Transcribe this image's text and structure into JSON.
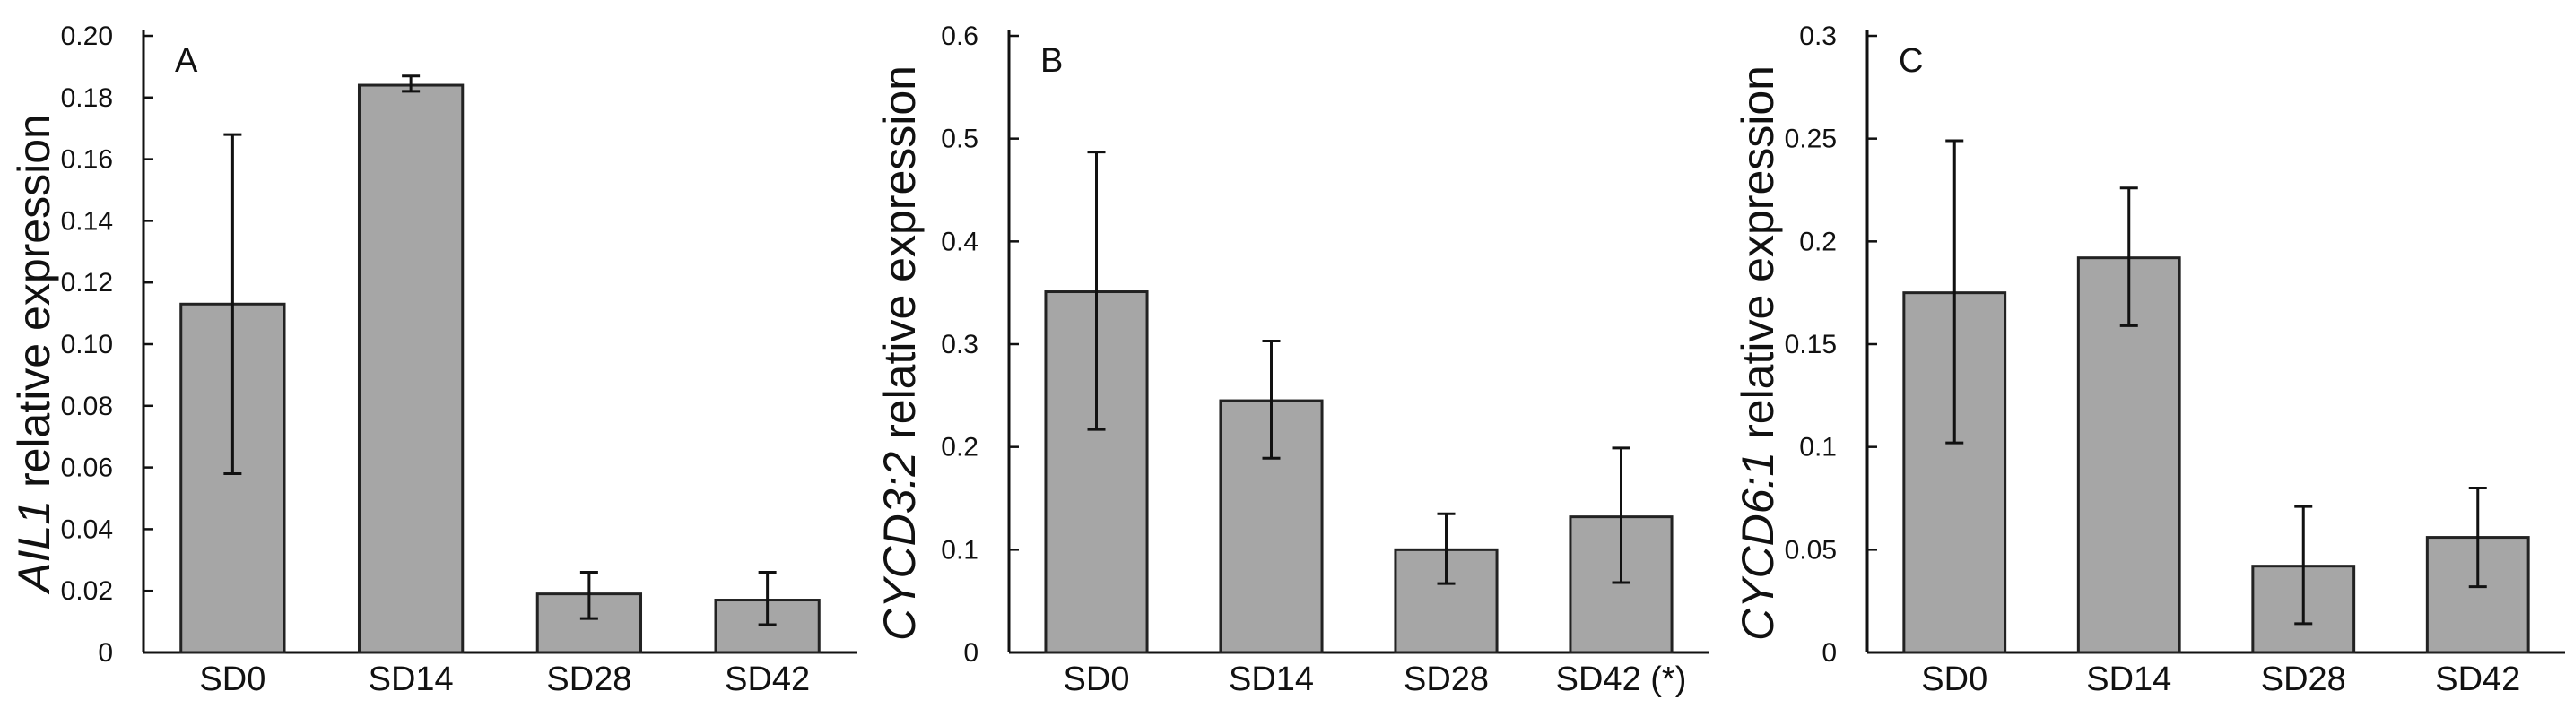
{
  "figure": {
    "bar_color": "#a6a6a6",
    "edge_color": "#222222"
  },
  "chart_data": [
    {
      "type": "bar",
      "panel_label": "A",
      "ylabel_gene": "AIL1",
      "ylabel_rest": " relative expression",
      "categories": [
        "SD0",
        "SD14",
        "SD28",
        "SD42"
      ],
      "values": [
        0.113,
        0.184,
        0.019,
        0.017
      ],
      "error_low": [
        0.058,
        0.182,
        0.011,
        0.009
      ],
      "error_high": [
        0.168,
        0.187,
        0.026,
        0.026
      ],
      "ylim": [
        0,
        0.2
      ],
      "yticks": [
        0,
        0.02,
        0.04,
        0.06,
        0.08,
        0.1,
        0.12,
        0.14,
        0.16,
        0.18,
        0.2
      ],
      "ytick_labels": [
        "0",
        "0.02",
        "0.04",
        "0.06",
        "0.08",
        "0.10",
        "0.12",
        "0.14",
        "0.16",
        "0.18",
        "0.20"
      ]
    },
    {
      "type": "bar",
      "panel_label": "B",
      "ylabel_gene": "CYCD3:2",
      "ylabel_rest": " relative expression",
      "categories": [
        "SD0",
        "SD14",
        "SD28",
        "SD42 (*)"
      ],
      "values": [
        0.351,
        0.245,
        0.1,
        0.132
      ],
      "error_low": [
        0.217,
        0.189,
        0.067,
        0.068
      ],
      "error_high": [
        0.487,
        0.303,
        0.135,
        0.199
      ],
      "ylim": [
        0,
        0.6
      ],
      "yticks": [
        0,
        0.1,
        0.2,
        0.3,
        0.4,
        0.5,
        0.6
      ],
      "ytick_labels": [
        "0",
        "0.1",
        "0.2",
        "0.3",
        "0.4",
        "0.5",
        "0.6"
      ]
    },
    {
      "type": "bar",
      "panel_label": "C",
      "ylabel_gene": "CYCD6:1",
      "ylabel_rest": " relative expression",
      "categories": [
        "SD0",
        "SD14",
        "SD28",
        "SD42"
      ],
      "values": [
        0.175,
        0.192,
        0.042,
        0.056
      ],
      "error_low": [
        0.102,
        0.159,
        0.014,
        0.032
      ],
      "error_high": [
        0.249,
        0.226,
        0.071,
        0.08
      ],
      "ylim": [
        0,
        0.3
      ],
      "yticks": [
        0,
        0.05,
        0.1,
        0.15,
        0.2,
        0.25,
        0.3
      ],
      "ytick_labels": [
        "0",
        "0.05",
        "0.1",
        "0.15",
        "0.2",
        "0.25",
        "0.3"
      ]
    }
  ]
}
